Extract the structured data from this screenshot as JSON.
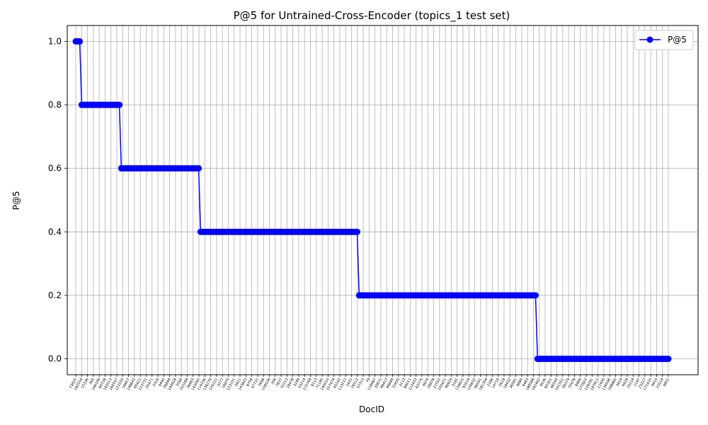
{
  "chart_data": {
    "type": "line",
    "title": "P@5 for Untrained-Cross-Encoder (topics_1 test set)",
    "xlabel": "DocID",
    "ylabel": "P@5",
    "ylim": [
      -0.05,
      1.05
    ],
    "yticks": [
      "0.0",
      "0.2",
      "0.4",
      "0.6",
      "0.8",
      "1.0"
    ],
    "grid": true,
    "legend_position": "top-right",
    "series": [
      {
        "name": "P@5",
        "color": "#0000ff",
        "marker": "circle",
        "segments": [
          {
            "value": 1.0,
            "count": 3
          },
          {
            "value": 0.8,
            "count": 20
          },
          {
            "value": 0.6,
            "count": 40
          },
          {
            "value": 0.4,
            "count": 80
          },
          {
            "value": 0.2,
            "count": 90
          },
          {
            "value": 0.0,
            "count": 67
          }
        ]
      }
    ],
    "x_tick_labels": [
      "73825",
      "182554",
      "15336",
      "365",
      "146106",
      "60728",
      "183513",
      "160557",
      "121020",
      "16607",
      "148643",
      "65421",
      "123731",
      "35471",
      "3316",
      "9440",
      "26848",
      "144928",
      "3590",
      "102289",
      "36663",
      "143082",
      "114336",
      "136276",
      "125121",
      "3277",
      "18870",
      "123151",
      "3921",
      "143843",
      "8758",
      "47731",
      "7698",
      "158536",
      "356",
      "7837",
      "31213",
      "18478",
      "3248",
      "33214",
      "115769",
      "8113",
      "71185",
      "140010",
      "107474",
      "45242",
      "113212",
      "2931",
      "16512",
      "57313",
      "79",
      "118987",
      "30871",
      "48417",
      "46849",
      "31835",
      "3113",
      "89011",
      "112433",
      "63775",
      "4974",
      "28878",
      "21552",
      "105471",
      "96924",
      "3181",
      "134815",
      "92018",
      "126632",
      "66591",
      "181354",
      "2186",
      "14716",
      "2618",
      "18432",
      "36581",
      "9880",
      "6483",
      "188588",
      "182462",
      "4536",
      "60301",
      "46540",
      "101551",
      "58379",
      "70478",
      "8469",
      "177602",
      "128291",
      "187811",
      "11930",
      "126546",
      "168860",
      "3419",
      "6928",
      "15214",
      "1197",
      "23227",
      "171410",
      "4910",
      "23514",
      "9851"
    ]
  }
}
